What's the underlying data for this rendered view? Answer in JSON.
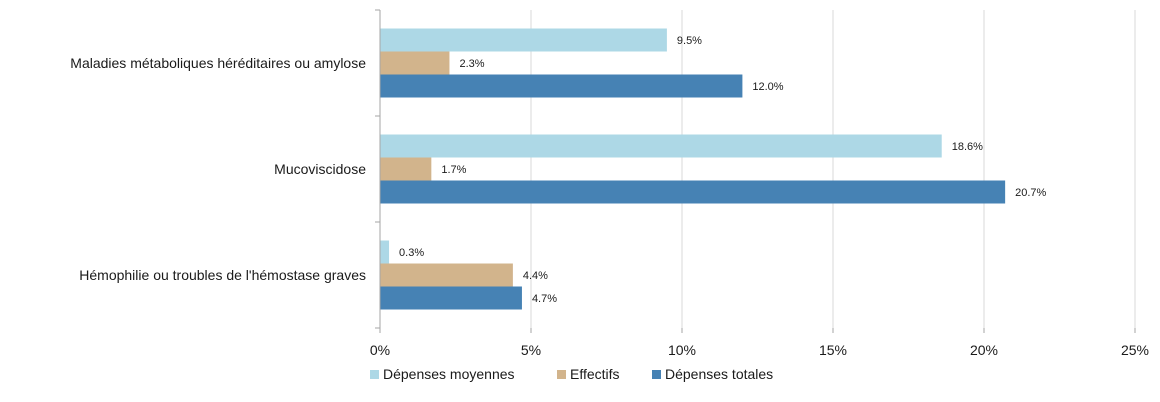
{
  "chart_data": {
    "type": "bar",
    "orientation": "horizontal",
    "categories": [
      "Maladies métaboliques héréditaires ou amylose",
      "Mucoviscidose",
      "Hémophilie ou troubles de l'hémostase graves"
    ],
    "series": [
      {
        "name": "Dépenses moyennes",
        "color": "#ADD8E6",
        "values": [
          9.5,
          18.6,
          0.3
        ],
        "labels": [
          "9.5%",
          "18.6%",
          "0.3%"
        ]
      },
      {
        "name": "Effectifs",
        "color": "#D2B48C",
        "values": [
          2.3,
          1.7,
          4.4
        ],
        "labels": [
          "2.3%",
          "1.7%",
          "4.4%"
        ]
      },
      {
        "name": "Dépenses totales",
        "color": "#4682B4",
        "values": [
          12.0,
          20.7,
          4.7
        ],
        "labels": [
          "12.0%",
          "20.7%",
          "4.7%"
        ]
      }
    ],
    "xlim": [
      0,
      25
    ],
    "xticks": [
      0,
      5,
      10,
      15,
      20,
      25
    ],
    "xtick_labels": [
      "0%",
      "5%",
      "10%",
      "15%",
      "20%",
      "25%"
    ],
    "grid": "vertical",
    "legend_position": "bottom"
  }
}
